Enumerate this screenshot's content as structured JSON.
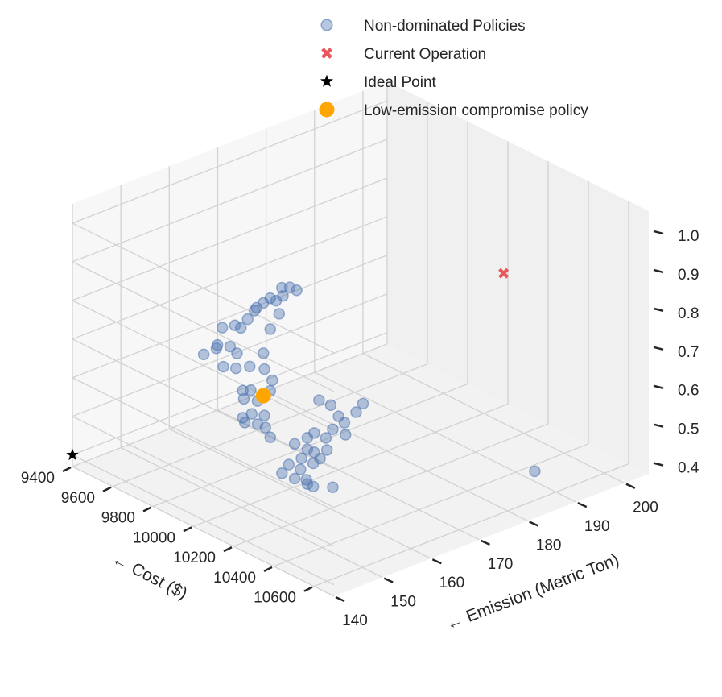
{
  "chart_data": {
    "type": "scatter",
    "projection": "3d",
    "xlabel": "← Cost ($)",
    "ylabel": "← Emission (Metric Ton)",
    "x_ticks": [
      "9400",
      "9600",
      "9800",
      "10000",
      "10200",
      "10400",
      "10600"
    ],
    "y_ticks": [
      "140",
      "150",
      "160",
      "170",
      "180",
      "190",
      "200"
    ],
    "z_ticks": [
      "0.4",
      "0.5",
      "0.6",
      "0.7",
      "0.8",
      "0.9",
      "1.0"
    ],
    "xlim": [
      9400,
      10700
    ],
    "ylim": [
      140,
      205
    ],
    "zlim": [
      0.37,
      1.05
    ],
    "grid": true,
    "legend_position": "top-right",
    "series": [
      {
        "name": "Non-dominated Policies",
        "marker": "circle",
        "color": "#4c72b0",
        "points": [
          [
            9960,
            160,
            0.88
          ],
          [
            9975,
            161,
            0.88
          ],
          [
            9985,
            162,
            0.87
          ],
          [
            9950,
            158,
            0.86
          ],
          [
            9965,
            160,
            0.86
          ],
          [
            9940,
            157,
            0.85
          ],
          [
            9955,
            159,
            0.85
          ],
          [
            9930,
            156,
            0.84
          ],
          [
            9920,
            156,
            0.83
          ],
          [
            9970,
            159,
            0.82
          ],
          [
            9880,
            151,
            0.8
          ],
          [
            9895,
            153,
            0.8
          ],
          [
            9910,
            155,
            0.81
          ],
          [
            9900,
            154,
            0.79
          ],
          [
            9950,
            158,
            0.78
          ],
          [
            9880,
            150,
            0.76
          ],
          [
            9860,
            148,
            0.74
          ],
          [
            9875,
            150,
            0.75
          ],
          [
            9895,
            152,
            0.75
          ],
          [
            9940,
            157,
            0.72
          ],
          [
            9905,
            153,
            0.73
          ],
          [
            9885,
            151,
            0.7
          ],
          [
            9900,
            153,
            0.69
          ],
          [
            9920,
            155,
            0.69
          ],
          [
            9945,
            157,
            0.68
          ],
          [
            9960,
            158,
            0.65
          ],
          [
            9910,
            154,
            0.63
          ],
          [
            9925,
            155,
            0.63
          ],
          [
            9915,
            154,
            0.61
          ],
          [
            9935,
            156,
            0.6
          ],
          [
            9950,
            158,
            0.62
          ],
          [
            9930,
            155,
            0.57
          ],
          [
            9910,
            154,
            0.56
          ],
          [
            9920,
            154,
            0.55
          ],
          [
            9945,
            157,
            0.56
          ],
          [
            9935,
            156,
            0.54
          ],
          [
            9950,
            157,
            0.53
          ],
          [
            10000,
            166,
            0.57
          ],
          [
            10010,
            168,
            0.55
          ],
          [
            10025,
            169,
            0.52
          ],
          [
            10040,
            172,
            0.52
          ],
          [
            10050,
            173,
            0.54
          ],
          [
            10030,
            170,
            0.5
          ],
          [
            10020,
            168,
            0.49
          ],
          [
            10000,
            165,
            0.49
          ],
          [
            9990,
            164,
            0.48
          ],
          [
            9975,
            162,
            0.47
          ],
          [
            10010,
            167,
            0.47
          ],
          [
            10035,
            170,
            0.47
          ],
          [
            9950,
            158,
            0.5
          ],
          [
            9990,
            164,
            0.45
          ],
          [
            10000,
            165,
            0.44
          ],
          [
            10015,
            167,
            0.44
          ],
          [
            9985,
            163,
            0.43
          ],
          [
            10005,
            166,
            0.42
          ],
          [
            9995,
            165,
            0.41
          ],
          [
            9970,
            161,
            0.42
          ],
          [
            9960,
            160,
            0.4
          ],
          [
            9980,
            163,
            0.4
          ],
          [
            9975,
            162,
            0.38
          ],
          [
            9985,
            164,
            0.37
          ],
          [
            9990,
            164,
            0.36
          ],
          [
            9995,
            165,
            0.35
          ],
          [
            10020,
            168,
            0.34
          ],
          [
            10350,
            196,
            0.33
          ]
        ]
      },
      {
        "name": "Current Operation",
        "marker": "x",
        "color": "#e8454a",
        "points": [
          [
            10580,
            180,
            0.98
          ]
        ]
      },
      {
        "name": "Ideal Point",
        "marker": "star",
        "color": "#000000",
        "points": [
          [
            9400,
            140,
            0.4
          ]
        ]
      },
      {
        "name": "Low-emission compromise policy",
        "marker": "circle-large",
        "color": "#ffa500",
        "points": [
          [
            9940,
            157,
            0.61
          ]
        ]
      }
    ]
  }
}
